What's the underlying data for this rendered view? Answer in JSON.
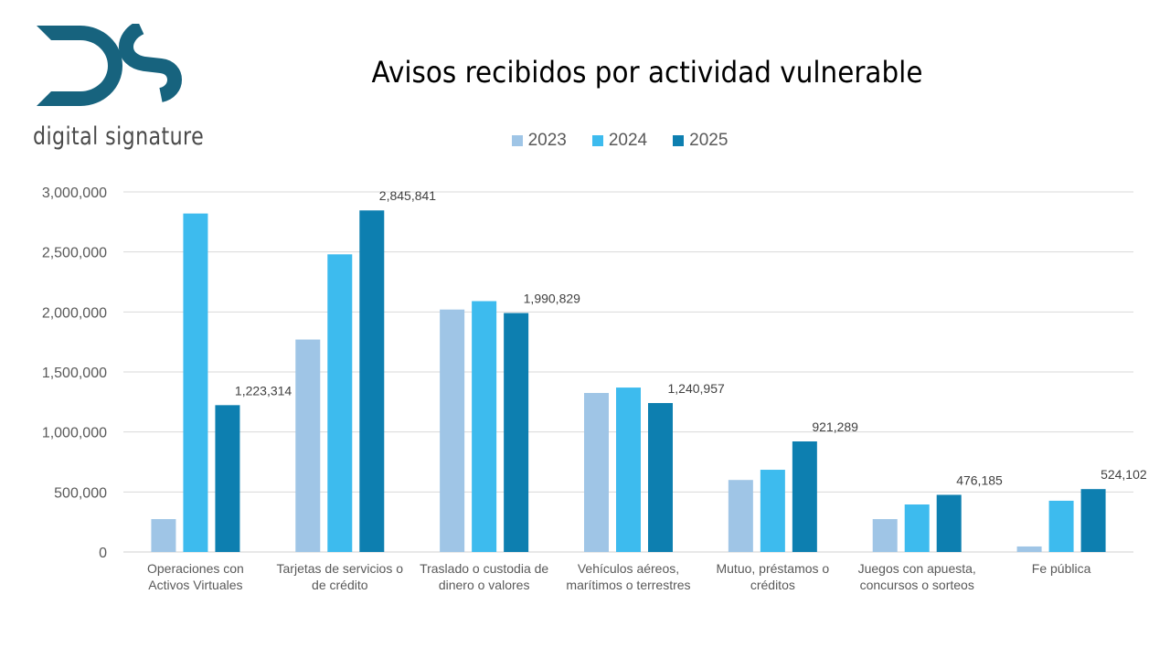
{
  "brand": {
    "logo_text": "digital signature",
    "logo_color": "#17637e"
  },
  "chart_data": {
    "type": "bar",
    "title": "Avisos recibidos por actividad vulnerable",
    "xlabel": "",
    "ylabel": "",
    "ylim": [
      0,
      3000000
    ],
    "yticks": [
      0,
      500000,
      1000000,
      1500000,
      2000000,
      2500000,
      3000000
    ],
    "ytick_labels": [
      "0",
      "500,000",
      "1,000,000",
      "1,500,000",
      "2,000,000",
      "2,500,000",
      "3,000,000"
    ],
    "grid": true,
    "legend_position": "top-center",
    "categories": [
      [
        "Operaciones con",
        "Activos Virtuales"
      ],
      [
        "Tarjetas de servicios o",
        "de crédito"
      ],
      [
        "Traslado o custodia de",
        "dinero o valores"
      ],
      [
        "Vehículos aéreos,",
        "marítimos o terrestres"
      ],
      [
        "Mutuo, préstamos o",
        "créditos"
      ],
      [
        "Juegos con apuesta,",
        "concursos o sorteos"
      ],
      [
        "Fe pública"
      ]
    ],
    "series": [
      {
        "name": "2023",
        "color": "#9fc5e6",
        "values": [
          274000,
          1770000,
          2020000,
          1325000,
          600000,
          274000,
          46000
        ]
      },
      {
        "name": "2024",
        "color": "#3dbbee",
        "values": [
          2820000,
          2480000,
          2090000,
          1370000,
          685000,
          396000,
          427000
        ]
      },
      {
        "name": "2025",
        "color": "#0d7fb0",
        "values": [
          1223314,
          2845841,
          1990829,
          1240957,
          921289,
          476185,
          524102
        ],
        "data_labels": [
          "1,223,314",
          "2,845,841",
          "1,990,829",
          "1,240,957",
          "921,289",
          "476,185",
          "524,102"
        ]
      }
    ]
  }
}
